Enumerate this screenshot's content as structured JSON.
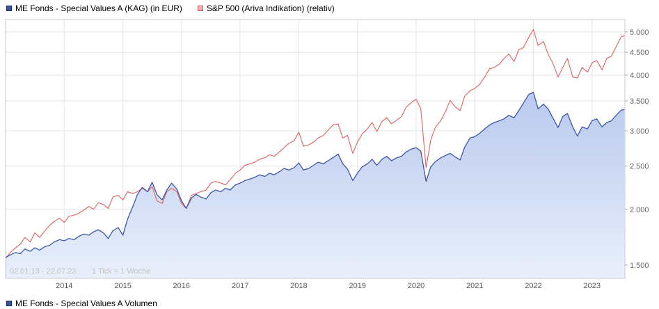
{
  "legend_top": {
    "items": [
      {
        "label": "ME Fonds - Special Values A (KAG) (in EUR)",
        "swatch_fill": "#3a57a7",
        "swatch_border": "#16255c"
      },
      {
        "label": "S&P 500 (Ariva Indikation) (relativ)",
        "swatch_fill": "#f2b9b9",
        "swatch_border": "#c94f4f"
      }
    ]
  },
  "legend_bottom": {
    "items": [
      {
        "label": "ME Fonds - Special Values A Volumen",
        "swatch_fill": "#3a57a7",
        "swatch_border": "#16255c"
      }
    ]
  },
  "chart_data": {
    "type": "line",
    "title": "",
    "xlabel": "",
    "ylabel": "",
    "y_scale": "log",
    "x_range": [
      2013.0,
      2023.56
    ],
    "ylim": [
      1.4,
      5.33
    ],
    "grid": true,
    "legend_position": "top",
    "watermark": {
      "range": "02.01.13 - 22.07.23",
      "tick": "1 Tick = 1 Woche"
    },
    "colors": {
      "grid": "#e5e5e5",
      "border": "#c8c8c8",
      "tick": "#aaaaaa",
      "axis_text": "#666666",
      "watermark": "#c3c3c3"
    },
    "y_ticks": [
      {
        "value": 5.0,
        "label": "5.000"
      },
      {
        "value": 4.5,
        "label": "4.500"
      },
      {
        "value": 4.0,
        "label": "4.000"
      },
      {
        "value": 3.5,
        "label": "3.500"
      },
      {
        "value": 3.0,
        "label": "3.000"
      },
      {
        "value": 2.5,
        "label": "2.500"
      },
      {
        "value": 2.0,
        "label": "2.000"
      },
      {
        "value": 1.5,
        "label": "1.500"
      }
    ],
    "x_ticks": [
      {
        "value": 2014,
        "label": "2014"
      },
      {
        "value": 2015,
        "label": "2015"
      },
      {
        "value": 2016,
        "label": "2016"
      },
      {
        "value": 2017,
        "label": "2017"
      },
      {
        "value": 2018,
        "label": "2018"
      },
      {
        "value": 2019,
        "label": "2019"
      },
      {
        "value": 2020,
        "label": "2020"
      },
      {
        "value": 2021,
        "label": "2021"
      },
      {
        "value": 2022,
        "label": "2022"
      },
      {
        "value": 2023,
        "label": "2023"
      }
    ],
    "x": [
      2013.0,
      2013.08,
      2013.17,
      2013.25,
      2013.33,
      2013.42,
      2013.5,
      2013.58,
      2013.67,
      2013.75,
      2013.83,
      2013.92,
      2014.0,
      2014.08,
      2014.17,
      2014.25,
      2014.33,
      2014.42,
      2014.5,
      2014.58,
      2014.67,
      2014.75,
      2014.83,
      2014.92,
      2015.0,
      2015.08,
      2015.17,
      2015.25,
      2015.33,
      2015.42,
      2015.5,
      2015.58,
      2015.67,
      2015.75,
      2015.83,
      2015.92,
      2016.0,
      2016.08,
      2016.17,
      2016.25,
      2016.33,
      2016.42,
      2016.5,
      2016.58,
      2016.67,
      2016.75,
      2016.83,
      2016.92,
      2017.0,
      2017.08,
      2017.17,
      2017.25,
      2017.33,
      2017.42,
      2017.5,
      2017.58,
      2017.67,
      2017.75,
      2017.83,
      2017.92,
      2018.0,
      2018.08,
      2018.17,
      2018.25,
      2018.33,
      2018.42,
      2018.5,
      2018.58,
      2018.67,
      2018.75,
      2018.83,
      2018.92,
      2019.0,
      2019.08,
      2019.17,
      2019.25,
      2019.33,
      2019.42,
      2019.5,
      2019.58,
      2019.67,
      2019.75,
      2019.83,
      2019.92,
      2020.0,
      2020.08,
      2020.17,
      2020.25,
      2020.33,
      2020.42,
      2020.5,
      2020.58,
      2020.67,
      2020.75,
      2020.83,
      2020.92,
      2021.0,
      2021.08,
      2021.17,
      2021.25,
      2021.33,
      2021.42,
      2021.5,
      2021.58,
      2021.67,
      2021.75,
      2021.83,
      2021.92,
      2022.0,
      2022.08,
      2022.17,
      2022.25,
      2022.33,
      2022.42,
      2022.5,
      2022.58,
      2022.67,
      2022.75,
      2022.83,
      2022.92,
      2023.0,
      2023.08,
      2023.17,
      2023.25,
      2023.33,
      2023.42,
      2023.5,
      2023.55
    ],
    "series": [
      {
        "name": "ME Fonds - Special Values A (KAG) (in EUR)",
        "color": "#3a57a7",
        "area_top": "#b9c9ee",
        "area_bottom": "#e9effb",
        "values": [
          1.56,
          1.58,
          1.6,
          1.59,
          1.63,
          1.61,
          1.64,
          1.62,
          1.65,
          1.66,
          1.69,
          1.71,
          1.7,
          1.72,
          1.71,
          1.74,
          1.76,
          1.75,
          1.78,
          1.8,
          1.77,
          1.72,
          1.79,
          1.82,
          1.75,
          1.9,
          2.03,
          2.16,
          2.24,
          2.19,
          2.3,
          2.16,
          2.1,
          2.21,
          2.29,
          2.22,
          2.09,
          2.01,
          2.12,
          2.16,
          2.13,
          2.11,
          2.18,
          2.21,
          2.19,
          2.23,
          2.21,
          2.27,
          2.29,
          2.32,
          2.34,
          2.36,
          2.39,
          2.37,
          2.41,
          2.39,
          2.43,
          2.47,
          2.45,
          2.48,
          2.54,
          2.45,
          2.47,
          2.51,
          2.55,
          2.53,
          2.57,
          2.61,
          2.66,
          2.53,
          2.46,
          2.32,
          2.41,
          2.49,
          2.53,
          2.59,
          2.51,
          2.59,
          2.63,
          2.57,
          2.61,
          2.63,
          2.69,
          2.73,
          2.75,
          2.7,
          2.31,
          2.49,
          2.56,
          2.61,
          2.64,
          2.67,
          2.62,
          2.58,
          2.76,
          2.89,
          2.91,
          2.96,
          3.03,
          3.09,
          3.13,
          3.16,
          3.19,
          3.25,
          3.21,
          3.33,
          3.46,
          3.62,
          3.66,
          3.36,
          3.44,
          3.36,
          3.21,
          3.05,
          3.23,
          3.28,
          3.06,
          2.92,
          3.06,
          3.03,
          3.16,
          3.19,
          3.06,
          3.13,
          3.16,
          3.26,
          3.34,
          3.35
        ]
      },
      {
        "name": "S&P 500 (Ariva Indikation) (relativ)",
        "color": "#e06a6a",
        "values": [
          1.55,
          1.6,
          1.64,
          1.67,
          1.73,
          1.69,
          1.77,
          1.73,
          1.79,
          1.84,
          1.88,
          1.91,
          1.87,
          1.93,
          1.94,
          1.96,
          1.99,
          2.03,
          2.0,
          2.07,
          2.05,
          2.01,
          2.13,
          2.15,
          2.1,
          2.19,
          2.17,
          2.19,
          2.23,
          2.19,
          2.25,
          2.09,
          2.06,
          2.19,
          2.23,
          2.19,
          2.06,
          2.01,
          2.15,
          2.17,
          2.19,
          2.21,
          2.29,
          2.31,
          2.29,
          2.27,
          2.33,
          2.41,
          2.45,
          2.51,
          2.53,
          2.55,
          2.59,
          2.61,
          2.65,
          2.63,
          2.69,
          2.75,
          2.81,
          2.85,
          2.98,
          2.77,
          2.79,
          2.83,
          2.89,
          2.93,
          3.01,
          3.09,
          3.11,
          2.89,
          2.93,
          2.67,
          2.83,
          2.95,
          3.03,
          3.13,
          2.99,
          3.15,
          3.21,
          3.11,
          3.17,
          3.23,
          3.39,
          3.47,
          3.53,
          3.36,
          2.48,
          2.86,
          3.06,
          3.16,
          3.31,
          3.51,
          3.39,
          3.33,
          3.59,
          3.69,
          3.73,
          3.81,
          3.96,
          4.13,
          4.16,
          4.23,
          4.36,
          4.46,
          4.29,
          4.56,
          4.61,
          4.86,
          5.06,
          4.66,
          4.76,
          4.46,
          4.26,
          3.96,
          4.16,
          4.36,
          3.96,
          3.94,
          4.16,
          4.06,
          4.26,
          4.31,
          4.11,
          4.36,
          4.41,
          4.66,
          4.88,
          4.9
        ]
      }
    ]
  }
}
